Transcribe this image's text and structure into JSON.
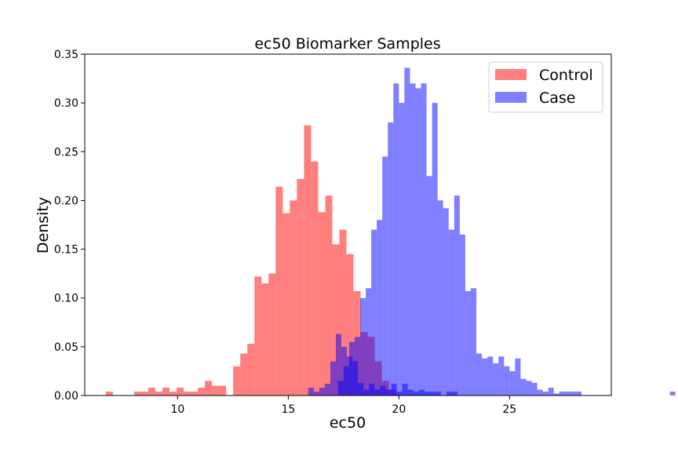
{
  "chart_data": {
    "type": "histogram",
    "title": "ec50 Biomarker Samples",
    "xlabel": "ec50",
    "ylabel": "Density",
    "xlim": [
      5.8,
      29.6
    ],
    "ylim": [
      0,
      0.35
    ],
    "xticks": [
      10,
      15,
      20,
      25
    ],
    "yticks": [
      0.0,
      0.05,
      0.1,
      0.15,
      0.2,
      0.25,
      0.3,
      0.35
    ],
    "ytick_labels": [
      "0.00",
      "0.05",
      "0.10",
      "0.15",
      "0.20",
      "0.25",
      "0.30",
      "0.35"
    ],
    "grid": false,
    "legend_position": "upper-right",
    "series": [
      {
        "name": "Control",
        "color": "#ff0000",
        "alpha": 0.5,
        "bin_width": 0.32,
        "bin_start": 6.75,
        "values": [
          0.004,
          0,
          0,
          0,
          0.004,
          0.004,
          0.008,
          0.004,
          0.008,
          0.004,
          0.008,
          0.004,
          0.004,
          0.008,
          0.015,
          0.01,
          0.01,
          0,
          0.03,
          0.043,
          0.053,
          0.122,
          0.115,
          0.125,
          0.214,
          0.187,
          0.2,
          0.222,
          0.277,
          0.24,
          0.188,
          0.205,
          0.155,
          0.17,
          0.145,
          0.107,
          0.065,
          0.06,
          0.035,
          0.015,
          0.006
        ]
      },
      {
        "name": "Case",
        "color": "#0000ff",
        "alpha": 0.5,
        "bin_width": 0.25,
        "bin_start": 15.9,
        "values": [
          0.008,
          0.004,
          0.008,
          0.012,
          0.035,
          0.063,
          0.05,
          0.04,
          0.035,
          0.013,
          0.006,
          0.012,
          0.006,
          0.01,
          0.006,
          0.012,
          0.004,
          0.012,
          0.006,
          0.004,
          0.006,
          0.004,
          0.004,
          0.004,
          0,
          0.004,
          0.004,
          0,
          0,
          0,
          0,
          0,
          0,
          0,
          0,
          0,
          0,
          0,
          0,
          0,
          0,
          0
        ],
        "overlap_only": true
      },
      {
        "name": "Case",
        "color": "#0000ff",
        "alpha": 0.5,
        "bin_width": 0.25,
        "bin_start": 17.25,
        "values": [
          0.015,
          0.03,
          0.055,
          0.06,
          0.1,
          0.11,
          0.17,
          0.18,
          0.245,
          0.28,
          0.32,
          0.3,
          0.336,
          0.32,
          0.315,
          0.32,
          0.225,
          0.3,
          0.2,
          0.192,
          0.17,
          0.205,
          0.165,
          0.107,
          0.11,
          0.043,
          0.038,
          0.04,
          0.033,
          0.04,
          0.03,
          0.025,
          0.038,
          0.017,
          0.015,
          0.013,
          0.006,
          0.004,
          0.008,
          0.002,
          0.004,
          0.004,
          0.004,
          0.004,
          0,
          0,
          0,
          0,
          0,
          0,
          0,
          0,
          0,
          0,
          0,
          0,
          0,
          0,
          0,
          0,
          0.004,
          0,
          0,
          0,
          0,
          0,
          0,
          0,
          0,
          0,
          0,
          0.004
        ]
      }
    ]
  }
}
